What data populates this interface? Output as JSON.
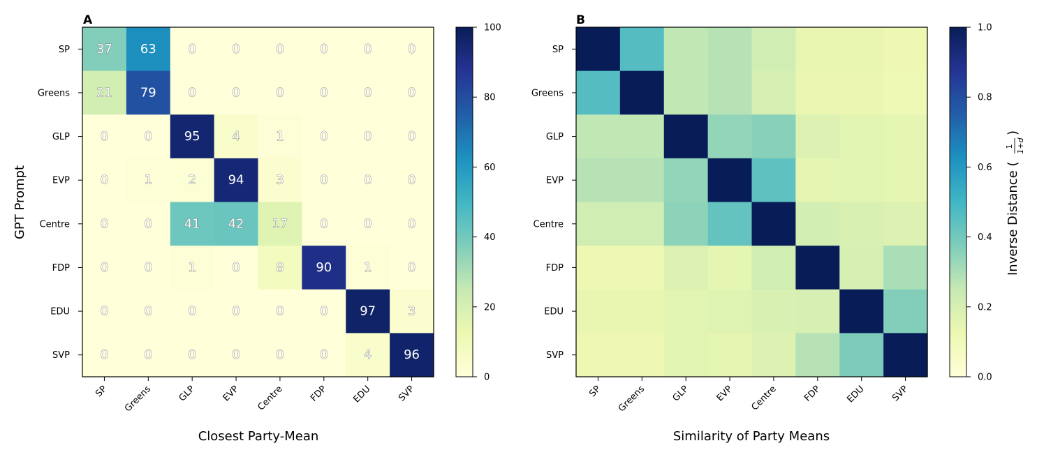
{
  "chart_data": [
    {
      "type": "heatmap",
      "panel_label": "A",
      "title": "",
      "xlabel": "Closest Party-Mean",
      "ylabel": "GPT Prompt",
      "x_categories": [
        "SP",
        "Greens",
        "GLP",
        "EVP",
        "Centre",
        "FDP",
        "EDU",
        "SVP"
      ],
      "y_categories": [
        "SP",
        "Greens",
        "GLP",
        "EVP",
        "Centre",
        "FDP",
        "EDU",
        "SVP"
      ],
      "values": [
        [
          37,
          63,
          0,
          0,
          0,
          0,
          0,
          0
        ],
        [
          21,
          79,
          0,
          0,
          0,
          0,
          0,
          0
        ],
        [
          0,
          0,
          95,
          4,
          1,
          0,
          0,
          0
        ],
        [
          0,
          1,
          2,
          94,
          3,
          0,
          0,
          0
        ],
        [
          0,
          0,
          41,
          42,
          17,
          0,
          0,
          0
        ],
        [
          0,
          0,
          1,
          0,
          8,
          90,
          1,
          0
        ],
        [
          0,
          0,
          0,
          0,
          0,
          0,
          97,
          3
        ],
        [
          0,
          0,
          0,
          0,
          0,
          0,
          4,
          96
        ]
      ],
      "cell_labels_shown": true,
      "colormap": "YlGnBu",
      "vmin": 0,
      "vmax": 100,
      "colorbar_label": "",
      "colorbar_ticks": [
        "0",
        "20",
        "40",
        "60",
        "80",
        "100"
      ],
      "colorbar_tick_values": [
        0,
        20,
        40,
        60,
        80,
        100
      ]
    },
    {
      "type": "heatmap",
      "panel_label": "B",
      "title": "",
      "xlabel": "Similarity of Party Means",
      "ylabel": "",
      "x_categories": [
        "SP",
        "Greens",
        "GLP",
        "EVP",
        "Centre",
        "FDP",
        "EDU",
        "SVP"
      ],
      "y_categories": [
        "SP",
        "Greens",
        "GLP",
        "EVP",
        "Centre",
        "FDP",
        "EDU",
        "SVP"
      ],
      "values": [
        [
          1.0,
          0.46,
          0.26,
          0.28,
          0.22,
          0.14,
          0.14,
          0.12
        ],
        [
          0.46,
          1.0,
          0.26,
          0.28,
          0.2,
          0.13,
          0.13,
          0.11
        ],
        [
          0.26,
          0.26,
          1.0,
          0.34,
          0.36,
          0.18,
          0.16,
          0.15
        ],
        [
          0.28,
          0.28,
          0.34,
          1.0,
          0.44,
          0.15,
          0.16,
          0.15
        ],
        [
          0.22,
          0.22,
          0.35,
          0.43,
          1.0,
          0.21,
          0.19,
          0.18
        ],
        [
          0.12,
          0.12,
          0.18,
          0.15,
          0.22,
          1.0,
          0.2,
          0.3
        ],
        [
          0.14,
          0.14,
          0.16,
          0.17,
          0.19,
          0.2,
          1.0,
          0.37
        ],
        [
          0.12,
          0.12,
          0.16,
          0.15,
          0.18,
          0.28,
          0.38,
          1.0
        ]
      ],
      "cell_labels_shown": false,
      "colormap": "YlGnBu",
      "vmin": 0.0,
      "vmax": 1.0,
      "colorbar_label_main": "Inverse Distance (",
      "colorbar_label_num": "1",
      "colorbar_label_den": "1+d",
      "colorbar_label_close": ")",
      "colorbar_ticks": [
        "0.0",
        "0.2",
        "0.4",
        "0.6",
        "0.8",
        "1.0"
      ],
      "colorbar_tick_values": [
        0.0,
        0.2,
        0.4,
        0.6,
        0.8,
        1.0
      ]
    }
  ]
}
